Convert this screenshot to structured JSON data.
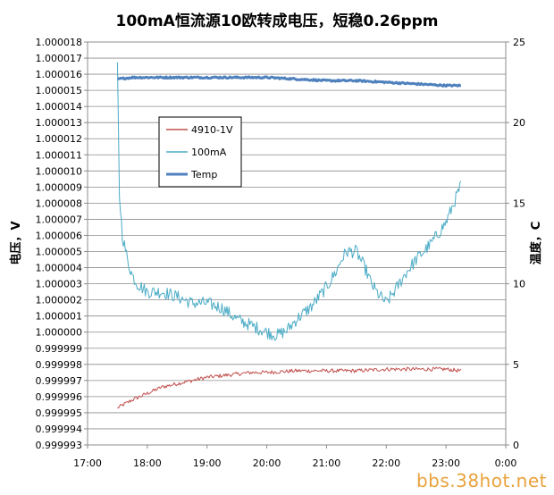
{
  "chart_data": {
    "type": "line",
    "title": "100mA恒流源10欧转成电压，短稳0.26ppm",
    "ylabel": "电压，V",
    "y2label": "温度，C",
    "x_ticks": [
      "17:00",
      "18:00",
      "19:00",
      "20:00",
      "21:00",
      "22:00",
      "23:00",
      "0:00"
    ],
    "xlim_hours": [
      17,
      24
    ],
    "ylim": [
      0.999993,
      1.000018
    ],
    "y_step": 1e-06,
    "y_ticks": [
      "1.000018",
      "1.000017",
      "1.000016",
      "1.000015",
      "1.000014",
      "1.000013",
      "1.000012",
      "1.000011",
      "1.000010",
      "1.000009",
      "1.000008",
      "1.000007",
      "1.000006",
      "1.000005",
      "1.000004",
      "1.000003",
      "1.000002",
      "1.000001",
      "1.000000",
      "0.999999",
      "0.999998",
      "0.999997",
      "0.999996",
      "0.999995",
      "0.999994",
      "0.999993"
    ],
    "y2lim": [
      0,
      25
    ],
    "y2_ticks": [
      "25",
      "20",
      "15",
      "10",
      "5",
      "0"
    ],
    "grid": true,
    "legend_position": "upper-left",
    "series": [
      {
        "name": "4910-1V",
        "axis": "left",
        "color": "#c0504d",
        "noise": 1.2e-07,
        "x": [
          "17:30",
          "17:45",
          "18:00",
          "18:15",
          "18:30",
          "18:45",
          "19:00",
          "19:15",
          "19:30",
          "19:45",
          "20:00",
          "20:30",
          "21:00",
          "21:30",
          "22:00",
          "22:30",
          "23:00",
          "23:15"
        ],
        "y": [
          0.9999953,
          0.9999958,
          0.9999962,
          0.9999966,
          0.9999968,
          0.999997,
          0.9999972,
          0.9999973,
          0.9999974,
          0.9999975,
          0.9999975,
          0.9999976,
          0.9999976,
          0.9999976,
          0.9999977,
          0.9999977,
          0.9999977,
          0.9999976
        ]
      },
      {
        "name": "100mA",
        "axis": "left",
        "color": "#4bacc6",
        "noise": 4e-07,
        "x": [
          "17:30",
          "17:31",
          "17:32",
          "17:35",
          "17:40",
          "17:45",
          "17:50",
          "18:00",
          "18:15",
          "18:30",
          "18:45",
          "19:00",
          "19:15",
          "19:30",
          "19:45",
          "20:00",
          "20:10",
          "20:20",
          "20:30",
          "20:45",
          "21:00",
          "21:10",
          "21:15",
          "21:20",
          "21:30",
          "21:40",
          "21:45",
          "21:50",
          "22:00",
          "22:10",
          "22:20",
          "22:30",
          "22:45",
          "23:00",
          "23:15"
        ],
        "y": [
          1.0000165,
          1.0000125,
          1.0000085,
          1.000006,
          1.0000045,
          1.0000035,
          1.000003,
          1.0000025,
          1.0000025,
          1.0000022,
          1.0000018,
          1.0000018,
          1.0000015,
          1.0000008,
          1.0000004,
          1.0,
          0.9999998,
          1.0000001,
          1.0000008,
          1.0000016,
          1.0000028,
          1.0000038,
          1.0000045,
          1.000005,
          1.000005,
          1.0000038,
          1.000003,
          1.0000025,
          1.0000018,
          1.0000027,
          1.0000037,
          1.0000045,
          1.0000055,
          1.0000068,
          1.0000091
        ]
      },
      {
        "name": "Temp",
        "axis": "right",
        "color": "#4f81bd",
        "noise": 0.05,
        "x": [
          "17:30",
          "17:45",
          "18:00",
          "18:30",
          "19:00",
          "19:30",
          "20:00",
          "20:30",
          "21:00",
          "21:30",
          "22:00",
          "22:30",
          "23:00",
          "23:15"
        ],
        "y": [
          22.7,
          22.8,
          22.8,
          22.8,
          22.8,
          22.8,
          22.8,
          22.7,
          22.6,
          22.6,
          22.5,
          22.4,
          22.3,
          22.3
        ]
      }
    ]
  },
  "watermark": "bbs.38hot.net"
}
